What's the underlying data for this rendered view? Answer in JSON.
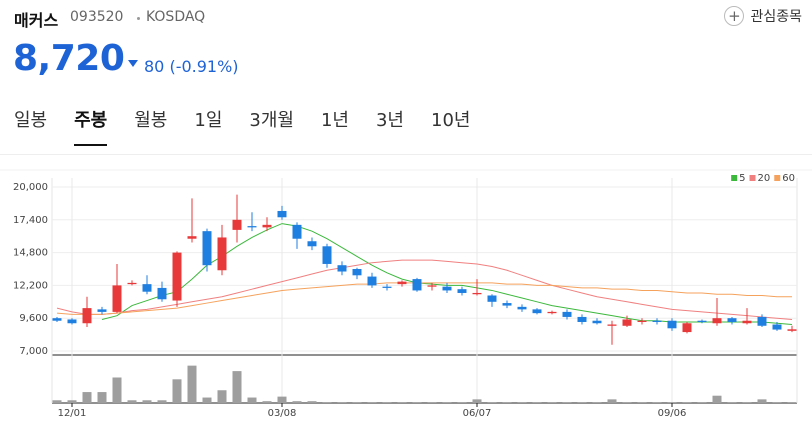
{
  "header": {
    "name": "매커스",
    "code": "093520",
    "market": "KOSDAQ",
    "watch": "관심종목",
    "price": "8,720",
    "change": "80",
    "change_pct": "(-0.91%)"
  },
  "tabs": [
    "일봉",
    "주봉",
    "월봉",
    "1일",
    "3개월",
    "1년",
    "3년",
    "10년"
  ],
  "active_tab": 1,
  "chart_data": {
    "type": "candlestick",
    "categories": [
      null,
      "12/01",
      null,
      null,
      null,
      null,
      null,
      null,
      null,
      null,
      null,
      null,
      null,
      null,
      null,
      "03/08",
      null,
      null,
      null,
      null,
      null,
      null,
      null,
      null,
      null,
      null,
      null,
      null,
      "06/07",
      null,
      null,
      null,
      null,
      null,
      null,
      null,
      null,
      null,
      null,
      null,
      null,
      "09/06",
      null,
      null,
      null,
      null,
      null,
      null,
      null,
      null
    ],
    "open": [
      9600,
      9500,
      9200,
      10300,
      10100,
      12300,
      12300,
      12000,
      11000,
      15900,
      16500,
      13400,
      16600,
      16900,
      16800,
      18100,
      17000,
      15700,
      15300,
      13800,
      13500,
      12900,
      12100,
      12300,
      12700,
      12100,
      12100,
      11900,
      11500,
      11400,
      10800,
      10500,
      10300,
      10000,
      10100,
      9700,
      9400,
      9000,
      9000,
      9300,
      9400,
      9400,
      8500,
      9400,
      9200,
      9600,
      9200,
      9700,
      9100,
      8600
    ],
    "high": [
      9700,
      9600,
      11300,
      10500,
      13900,
      12600,
      13000,
      12500,
      14900,
      19100,
      16700,
      17000,
      19400,
      18000,
      17600,
      18500,
      17200,
      16000,
      15500,
      14100,
      13600,
      13200,
      12300,
      12600,
      12800,
      12400,
      12400,
      12100,
      12700,
      11500,
      11000,
      10700,
      10400,
      10200,
      10300,
      9900,
      9600,
      9400,
      9800,
      9600,
      9600,
      9600,
      9300,
      9500,
      11200,
      9700,
      10400,
      9900,
      9300,
      9000
    ],
    "low": [
      9300,
      9100,
      8900,
      9900,
      10000,
      12200,
      11500,
      10900,
      10500,
      15600,
      13300,
      13000,
      15600,
      16500,
      16500,
      17400,
      15100,
      15000,
      13600,
      13000,
      12700,
      12000,
      11800,
      12100,
      11700,
      11800,
      11600,
      11400,
      11400,
      10500,
      10400,
      10100,
      9900,
      9900,
      9500,
      9100,
      9100,
      7500,
      8900,
      9100,
      9100,
      8600,
      8400,
      9200,
      9000,
      9100,
      9100,
      8900,
      8600,
      8500
    ],
    "close": [
      9400,
      9200,
      10400,
      10100,
      12200,
      12400,
      11700,
      11100,
      14800,
      16100,
      13800,
      16000,
      17400,
      16800,
      17000,
      17600,
      15900,
      15300,
      13900,
      13300,
      13000,
      12200,
      12000,
      12500,
      11800,
      12200,
      11800,
      11600,
      11600,
      10900,
      10600,
      10300,
      10000,
      10100,
      9700,
      9300,
      9200,
      9100,
      9500,
      9400,
      9300,
      8800,
      9200,
      9300,
      9600,
      9300,
      9400,
      9000,
      8700,
      8720
    ],
    "up_color": "#e8393a",
    "down_color": "#1f7fe0",
    "ma": [
      {
        "name": "5",
        "color": "#3cb83c",
        "values": [
          null,
          null,
          null,
          9500,
          9800,
          10600,
          11000,
          11400,
          11700,
          12700,
          13800,
          14500,
          15300,
          16000,
          16600,
          17100,
          16900,
          16500,
          15900,
          15200,
          14500,
          13800,
          13200,
          12700,
          12400,
          12300,
          12200,
          12200,
          12000,
          11800,
          11500,
          11200,
          10900,
          10600,
          10400,
          10200,
          10000,
          9800,
          9600,
          9400,
          9400,
          9300,
          9300,
          9300,
          9300,
          9300,
          9300,
          9300,
          9200,
          9100
        ]
      },
      {
        "name": "20",
        "color": "#f08080",
        "values": [
          10400,
          10100,
          9900,
          9900,
          10000,
          10200,
          10300,
          10500,
          10700,
          10900,
          11100,
          11300,
          11600,
          11900,
          12200,
          12500,
          12800,
          13100,
          13400,
          13600,
          13800,
          14000,
          14100,
          14200,
          14200,
          14200,
          14100,
          14000,
          13900,
          13700,
          13400,
          13000,
          12600,
          12200,
          11900,
          11600,
          11300,
          11100,
          10900,
          10700,
          10500,
          10300,
          10200,
          10100,
          10000,
          9900,
          9800,
          9700,
          9600,
          9500
        ]
      },
      {
        "name": "60",
        "color": "#f5a25d",
        "values": [
          10000,
          9900,
          9900,
          9900,
          10000,
          10100,
          10200,
          10300,
          10400,
          10600,
          10800,
          11000,
          11200,
          11400,
          11600,
          11800,
          11900,
          12000,
          12100,
          12200,
          12300,
          12300,
          12400,
          12400,
          12400,
          12400,
          12400,
          12400,
          12400,
          12400,
          12300,
          12300,
          12200,
          12200,
          12100,
          12000,
          12000,
          11900,
          11900,
          11800,
          11800,
          11700,
          11600,
          11600,
          11500,
          11500,
          11400,
          11400,
          11300,
          11300
        ]
      }
    ],
    "ylim": [
      7000,
      20000
    ],
    "yticks": [
      {
        "value": 7000,
        "label": "7,000"
      },
      {
        "value": 9600,
        "label": "9,600"
      },
      {
        "value": 12200,
        "label": "12,200"
      },
      {
        "value": 14800,
        "label": "14,800"
      },
      {
        "value": 17400,
        "label": "17,400"
      },
      {
        "value": 20000,
        "label": "20,000"
      }
    ],
    "grid": true,
    "legend": "top-right",
    "volume": [
      3,
      3,
      12,
      12,
      28,
      3,
      3,
      3,
      26,
      41,
      6,
      14,
      35,
      6,
      2,
      7,
      2,
      2,
      1,
      1,
      1,
      1,
      1,
      1,
      1,
      1,
      1,
      1,
      4,
      1,
      1,
      1,
      1,
      1,
      1,
      1,
      1,
      4,
      1,
      1,
      1,
      1,
      1,
      1,
      8,
      1,
      1,
      4,
      1,
      1
    ],
    "volume_color": "#9e9e9e",
    "volume_lim": [
      0,
      45
    ]
  }
}
